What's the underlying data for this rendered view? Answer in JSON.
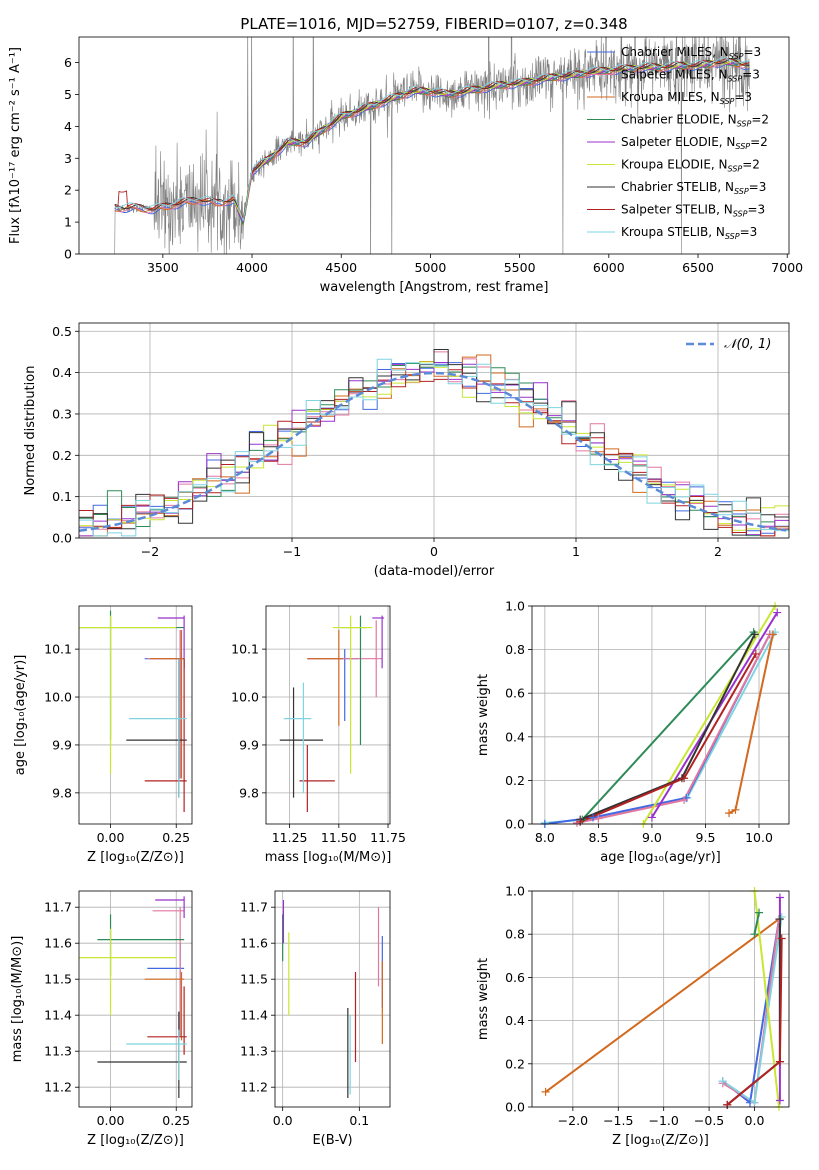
{
  "figure": {
    "title": "PLATE=1016, MJD=52759, FIBERID=0107, z=0.348"
  },
  "colors": {
    "Chabrier MILES": "#4169e1",
    "Salpeter MILES": "#e377a0",
    "Kroupa MILES": "#d2691e",
    "Chabrier ELODIE": "#2e8b57",
    "Salpeter ELODIE": "#9932cc",
    "Kroupa ELODIE": "#c8e632",
    "Chabrier STELIB": "#333333",
    "Salpeter STELIB": "#b22222",
    "Kroupa STELIB": "#7fd4e0",
    "gauss": "#5b8bd6",
    "data": "#808080",
    "grid": "#b0b0b0"
  },
  "chart_data": [
    {
      "id": "spectrum",
      "type": "line",
      "xlabel": "wavelength [Angstrom, rest frame]",
      "ylabel": "Flux [fλ10⁻¹⁷ erg cm⁻² s⁻¹ A⁻¹]",
      "xlim": [
        3030,
        7010
      ],
      "ylim": [
        0,
        6.8
      ],
      "xticks": [
        "3500",
        "4000",
        "4500",
        "5000",
        "5500",
        "6000",
        "6500",
        "7000"
      ],
      "yticks": [
        "0",
        "1",
        "2",
        "3",
        "4",
        "5",
        "6"
      ],
      "xtick_values": [
        3500,
        4000,
        4500,
        5000,
        5500,
        6000,
        6500,
        7000
      ],
      "ytick_values": [
        0,
        1,
        2,
        3,
        4,
        5,
        6
      ],
      "legend_position": "top-right",
      "legend": [
        {
          "label": "Chabrier MILES, N",
          "sub": "SSP",
          "tail": "=3",
          "key": "Chabrier MILES"
        },
        {
          "label": "Salpeter MILES, N",
          "sub": "SSP",
          "tail": "=3",
          "key": "Salpeter MILES"
        },
        {
          "label": "Kroupa MILES, N",
          "sub": "SSP",
          "tail": "=3",
          "key": "Kroupa MILES"
        },
        {
          "label": "Chabrier ELODIE, N",
          "sub": "SSP",
          "tail": "=2",
          "key": "Chabrier ELODIE"
        },
        {
          "label": "Salpeter ELODIE, N",
          "sub": "SSP",
          "tail": "=2",
          "key": "Salpeter ELODIE"
        },
        {
          "label": "Kroupa ELODIE, N",
          "sub": "SSP",
          "tail": "=2",
          "key": "Kroupa ELODIE"
        },
        {
          "label": "Chabrier STELIB, N",
          "sub": "SSP",
          "tail": "=3",
          "key": "Chabrier STELIB"
        },
        {
          "label": "Salpeter STELIB, N",
          "sub": "SSP",
          "tail": "=3",
          "key": "Salpeter STELIB"
        },
        {
          "label": "Kroupa STELIB, N",
          "sub": "SSP",
          "tail": "=3",
          "key": "Kroupa STELIB"
        }
      ],
      "continuum": [
        [
          3230,
          1.45
        ],
        [
          3350,
          1.45
        ],
        [
          3450,
          1.4
        ],
        [
          3600,
          1.6
        ],
        [
          3700,
          1.7
        ],
        [
          3800,
          1.6
        ],
        [
          3900,
          1.7
        ],
        [
          3950,
          1.0
        ],
        [
          4000,
          2.6
        ],
        [
          4100,
          3.0
        ],
        [
          4200,
          3.5
        ],
        [
          4300,
          3.5
        ],
        [
          4400,
          3.9
        ],
        [
          4500,
          4.3
        ],
        [
          4600,
          4.5
        ],
        [
          4700,
          4.7
        ],
        [
          4800,
          4.9
        ],
        [
          4900,
          5.1
        ],
        [
          5000,
          5.1
        ],
        [
          5100,
          5.0
        ],
        [
          5200,
          5.1
        ],
        [
          5300,
          5.2
        ],
        [
          5400,
          5.3
        ],
        [
          5500,
          5.35
        ],
        [
          5600,
          5.45
        ],
        [
          5700,
          5.55
        ],
        [
          5800,
          5.6
        ],
        [
          5900,
          5.7
        ],
        [
          6000,
          5.75
        ],
        [
          6100,
          5.8
        ],
        [
          6200,
          5.85
        ],
        [
          6300,
          5.85
        ],
        [
          6400,
          5.9
        ],
        [
          6500,
          5.9
        ],
        [
          6600,
          6.0
        ],
        [
          6700,
          6.0
        ],
        [
          6790,
          5.9
        ]
      ],
      "model_range": [
        3230,
        6790
      ],
      "data_range": [
        3230,
        6790
      ]
    },
    {
      "id": "residuals",
      "type": "histogram",
      "xlabel": "(data-model)/error",
      "ylabel": "Normed distribution",
      "xlim": [
        -2.5,
        2.5
      ],
      "ylim": [
        0,
        0.52
      ],
      "xticks": [
        "−2",
        "−1",
        "0",
        "1",
        "2"
      ],
      "yticks": [
        "0.0",
        "0.1",
        "0.2",
        "0.3",
        "0.4",
        "0.5"
      ],
      "xtick_values": [
        -2,
        -1,
        0,
        1,
        2
      ],
      "ytick_values": [
        0,
        0.1,
        0.2,
        0.3,
        0.4,
        0.5
      ],
      "bin_width": 0.1,
      "legend": [
        {
          "label": "𝒩(0, 1)",
          "key": "gauss"
        }
      ],
      "legend_position": "top-right"
    },
    {
      "id": "age_vs_Z",
      "type": "errorbar",
      "xlabel": "Z [log₁₀(Z/Z⊙)]",
      "ylabel": "age  [log₁₀(age/yr)]",
      "xlim": [
        -0.12,
        0.31
      ],
      "ylim": [
        9.735,
        10.19
      ],
      "xticks": [
        "0.00",
        "0.25"
      ],
      "yticks": [
        "9.8",
        "9.9",
        "10.0",
        "10.1"
      ],
      "xtick_values": [
        0.0,
        0.25
      ],
      "ytick_values": [
        9.8,
        9.9,
        10.0,
        10.1
      ],
      "points": [
        {
          "key": "Chabrier MILES",
          "x": 0.265,
          "y": 10.08,
          "xl": 0.13,
          "xh": 0.28,
          "yl": 9.83,
          "yh": 10.14
        },
        {
          "key": "Salpeter MILES",
          "x": 0.265,
          "y": 10.08,
          "xl": 0.14,
          "xh": 0.28,
          "yl": 9.83,
          "yh": 10.14
        },
        {
          "key": "Kroupa MILES",
          "x": 0.27,
          "y": 10.08,
          "xl": 0.15,
          "xh": 0.28,
          "yl": 9.83,
          "yh": 10.14
        },
        {
          "key": "Chabrier ELODIE",
          "x": 0.0,
          "y": 10.145,
          "xl": -0.12,
          "xh": 0.28,
          "yl": 9.91,
          "yh": 10.18
        },
        {
          "key": "Salpeter ELODIE",
          "x": 0.28,
          "y": 10.165,
          "xl": 0.18,
          "xh": 0.28,
          "yl": 10.06,
          "yh": 10.17
        },
        {
          "key": "Kroupa ELODIE",
          "x": 0.0,
          "y": 10.145,
          "xl": -0.12,
          "xh": 0.25,
          "yl": 9.84,
          "yh": 10.17
        },
        {
          "key": "Chabrier STELIB",
          "x": 0.26,
          "y": 9.91,
          "xl": 0.06,
          "xh": 0.29,
          "yl": 9.79,
          "yh": 10.08
        },
        {
          "key": "Salpeter STELIB",
          "x": 0.28,
          "y": 9.825,
          "xl": 0.13,
          "xh": 0.29,
          "yl": 9.76,
          "yh": 10.08
        },
        {
          "key": "Kroupa STELIB",
          "x": 0.26,
          "y": 9.955,
          "xl": 0.07,
          "xh": 0.29,
          "yl": 9.79,
          "yh": 10.08
        }
      ]
    },
    {
      "id": "age_vs_mass",
      "type": "errorbar",
      "xlabel": "mass [log₁₀(M/M⊙)]",
      "ylabel": "",
      "xlim": [
        11.13,
        11.76
      ],
      "ylim": [
        9.735,
        10.19
      ],
      "xticks": [
        "11.25",
        "11.50",
        "11.75"
      ],
      "yticks": [
        "9.8",
        "9.9",
        "10.0",
        "10.1"
      ],
      "xtick_values": [
        11.25,
        11.5,
        11.75
      ],
      "ytick_values": [
        9.8,
        9.9,
        10.0,
        10.1
      ],
      "points": [
        {
          "key": "Chabrier MILES",
          "x": 11.53,
          "y": 10.08,
          "xl": 11.34,
          "xh": 11.6,
          "yl": 9.95,
          "yh": 10.1
        },
        {
          "key": "Salpeter MILES",
          "x": 11.69,
          "y": 10.08,
          "xl": 11.34,
          "xh": 11.72,
          "yl": 10.0,
          "yh": 10.16
        },
        {
          "key": "Kroupa MILES",
          "x": 11.5,
          "y": 10.08,
          "xl": 11.34,
          "xh": 11.52,
          "yl": 9.94,
          "yh": 10.14
        },
        {
          "key": "Chabrier ELODIE",
          "x": 11.61,
          "y": 10.145,
          "xl": 11.51,
          "xh": 11.64,
          "yl": 9.9,
          "yh": 10.17
        },
        {
          "key": "Salpeter ELODIE",
          "x": 11.72,
          "y": 10.165,
          "xl": 11.67,
          "xh": 11.73,
          "yl": 10.06,
          "yh": 10.17
        },
        {
          "key": "Kroupa ELODIE",
          "x": 11.56,
          "y": 10.145,
          "xl": 11.47,
          "xh": 11.67,
          "yl": 9.84,
          "yh": 10.17
        },
        {
          "key": "Chabrier STELIB",
          "x": 11.27,
          "y": 9.91,
          "xl": 11.2,
          "xh": 11.42,
          "yl": 9.79,
          "yh": 10.02
        },
        {
          "key": "Salpeter STELIB",
          "x": 11.34,
          "y": 9.825,
          "xl": 11.3,
          "xh": 11.48,
          "yl": 9.76,
          "yh": 9.9
        },
        {
          "key": "Kroupa STELIB",
          "x": 11.32,
          "y": 9.955,
          "xl": 11.22,
          "xh": 11.36,
          "yl": 9.8,
          "yh": 10.03
        }
      ]
    },
    {
      "id": "weight_vs_age",
      "type": "line",
      "xlabel": "age  [log₁₀(age/yr)]",
      "ylabel": "mass weight",
      "xlim": [
        7.88,
        10.28
      ],
      "ylim": [
        0,
        1.0
      ],
      "xticks": [
        "8.0",
        "8.5",
        "9.0",
        "9.5",
        "10.0"
      ],
      "yticks": [
        "0.0",
        "0.2",
        "0.4",
        "0.6",
        "0.8",
        "1.0"
      ],
      "xtick_values": [
        8.0,
        8.5,
        9.0,
        9.5,
        10.0
      ],
      "ytick_values": [
        0,
        0.2,
        0.4,
        0.6,
        0.8,
        1.0
      ],
      "series": [
        {
          "key": "Kroupa STELIB",
          "x": [
            8.0,
            8.5,
            9.33,
            10.15
          ],
          "y": [
            0.005,
            0.025,
            0.12,
            0.88
          ]
        },
        {
          "key": "Chabrier MILES",
          "x": [
            8.0,
            8.45,
            9.32,
            10.1
          ],
          "y": [
            0.0,
            0.03,
            0.12,
            0.87
          ]
        },
        {
          "key": "Salpeter MILES",
          "x": [
            8.3,
            8.5,
            9.3,
            10.1
          ],
          "y": [
            0.005,
            0.025,
            0.11,
            0.87
          ]
        },
        {
          "key": "Chabrier ELODIE",
          "x": [
            8.35,
            9.95
          ],
          "y": [
            0.02,
            0.88
          ]
        },
        {
          "key": "Kroupa ELODIE",
          "x": [
            8.92,
            10.15
          ],
          "y": [
            0.0,
            1.0
          ]
        },
        {
          "key": "Salpeter ELODIE",
          "x": [
            9.0,
            10.17
          ],
          "y": [
            0.03,
            0.97
          ]
        },
        {
          "key": "Chabrier STELIB",
          "x": [
            8.33,
            9.28,
            9.96
          ],
          "y": [
            0.02,
            0.21,
            0.87
          ]
        },
        {
          "key": "Salpeter STELIB",
          "x": [
            8.33,
            9.3,
            9.97
          ],
          "y": [
            0.01,
            0.21,
            0.78
          ]
        },
        {
          "key": "Kroupa MILES",
          "x": [
            9.72,
            9.78,
            10.13
          ],
          "y": [
            0.05,
            0.065,
            0.87
          ]
        }
      ]
    },
    {
      "id": "mass_vs_Z",
      "type": "errorbar",
      "xlabel": "Z [log₁₀(Z/Z⊙)]",
      "ylabel": "mass [log₁₀(M/M⊙)]",
      "xlim": [
        -0.12,
        0.31
      ],
      "ylim": [
        11.145,
        11.745
      ],
      "xticks": [
        "0.00",
        "0.25"
      ],
      "yticks": [
        "11.2",
        "11.3",
        "11.4",
        "11.5",
        "11.6",
        "11.7"
      ],
      "xtick_values": [
        0.0,
        0.25
      ],
      "ytick_values": [
        11.2,
        11.3,
        11.4,
        11.5,
        11.6,
        11.7
      ],
      "points": [
        {
          "key": "Chabrier MILES",
          "x": 0.265,
          "y": 11.53,
          "xl": 0.14,
          "xh": 0.28,
          "yl": 11.34,
          "yh": 11.6
        },
        {
          "key": "Salpeter MILES",
          "x": 0.265,
          "y": 11.69,
          "xl": 0.16,
          "xh": 0.28,
          "yl": 11.34,
          "yh": 11.7
        },
        {
          "key": "Kroupa MILES",
          "x": 0.27,
          "y": 11.5,
          "xl": 0.13,
          "xh": 0.28,
          "yl": 11.33,
          "yh": 11.52
        },
        {
          "key": "Chabrier ELODIE",
          "x": 0.0,
          "y": 11.61,
          "xl": -0.05,
          "xh": 0.28,
          "yl": 11.51,
          "yh": 11.68
        },
        {
          "key": "Salpeter ELODIE",
          "x": 0.28,
          "y": 11.72,
          "xl": 0.17,
          "xh": 0.28,
          "yl": 11.67,
          "yh": 11.73
        },
        {
          "key": "Kroupa ELODIE",
          "x": 0.0,
          "y": 11.56,
          "xl": -0.12,
          "xh": 0.25,
          "yl": 11.4,
          "yh": 11.64
        },
        {
          "key": "Chabrier STELIB",
          "x": 0.26,
          "y": 11.27,
          "xl": -0.05,
          "xh": 0.29,
          "yl": 11.17,
          "yh": 11.41
        },
        {
          "key": "Salpeter STELIB",
          "x": 0.28,
          "y": 11.34,
          "xl": 0.14,
          "xh": 0.29,
          "yl": 11.29,
          "yh": 11.48
        },
        {
          "key": "Kroupa STELIB",
          "x": 0.26,
          "y": 11.32,
          "xl": 0.06,
          "xh": 0.29,
          "yl": 11.22,
          "yh": 11.36
        }
      ]
    },
    {
      "id": "mass_vs_EBV",
      "type": "errorbar",
      "xlabel": "E(B-V)",
      "ylabel": "",
      "xlim": [
        -0.01,
        0.14
      ],
      "ylim": [
        11.145,
        11.745
      ],
      "xticks": [
        "0.0",
        "0.1"
      ],
      "yticks": [
        "11.2",
        "11.3",
        "11.4",
        "11.5",
        "11.6",
        "11.7"
      ],
      "xtick_values": [
        0.0,
        0.1
      ],
      "ytick_values": [
        11.2,
        11.3,
        11.4,
        11.5,
        11.6,
        11.7
      ],
      "points": [
        {
          "key": "Chabrier MILES",
          "x": 0.13,
          "y": 11.53,
          "yl": 11.42,
          "yh": 11.62
        },
        {
          "key": "Salpeter MILES",
          "x": 0.125,
          "y": 11.6,
          "yl": 11.48,
          "yh": 11.7
        },
        {
          "key": "Kroupa MILES",
          "x": 0.13,
          "y": 11.5,
          "yl": 11.32,
          "yh": 11.55
        },
        {
          "key": "Chabrier ELODIE",
          "x": 0.0,
          "y": 11.61,
          "yl": 11.55,
          "yh": 11.68
        },
        {
          "key": "Salpeter ELODIE",
          "x": 0.001,
          "y": 11.68,
          "yl": 11.6,
          "yh": 11.72
        },
        {
          "key": "Kroupa ELODIE",
          "x": 0.008,
          "y": 11.56,
          "yl": 11.4,
          "yh": 11.63
        },
        {
          "key": "Chabrier STELIB",
          "x": 0.085,
          "y": 11.27,
          "yl": 11.17,
          "yh": 11.42
        },
        {
          "key": "Salpeter STELIB",
          "x": 0.095,
          "y": 11.34,
          "yl": 11.27,
          "yh": 11.52
        },
        {
          "key": "Kroupa STELIB",
          "x": 0.088,
          "y": 11.32,
          "yl": 11.18,
          "yh": 11.4
        }
      ]
    },
    {
      "id": "weight_vs_Z",
      "type": "line",
      "xlabel": "Z [log₁₀(Z/Z⊙)]",
      "ylabel": "mass weight",
      "xlim": [
        -2.45,
        0.38
      ],
      "ylim": [
        0,
        1.0
      ],
      "xticks": [
        "−2.0",
        "−1.5",
        "−1.0",
        "−0.5",
        "0.0"
      ],
      "yticks": [
        "0.0",
        "0.2",
        "0.4",
        "0.6",
        "0.8",
        "1.0"
      ],
      "xtick_values": [
        -2.0,
        -1.5,
        -1.0,
        -0.5,
        0.0
      ],
      "ytick_values": [
        0,
        0.2,
        0.4,
        0.6,
        0.8,
        1.0
      ],
      "series": [
        {
          "key": "Kroupa MILES",
          "x": [
            -2.3,
            0.27
          ],
          "y": [
            0.07,
            0.87
          ]
        },
        {
          "key": "Chabrier MILES",
          "x": [
            -0.35,
            -0.05,
            0.27
          ],
          "y": [
            0.12,
            0.02,
            0.87
          ]
        },
        {
          "key": "Salpeter MILES",
          "x": [
            -0.35,
            0.0,
            0.27
          ],
          "y": [
            0.11,
            0.02,
            0.87
          ]
        },
        {
          "key": "Kroupa STELIB",
          "x": [
            -0.35,
            0.0,
            0.3
          ],
          "y": [
            0.12,
            0.02,
            0.88
          ]
        },
        {
          "key": "Kroupa ELODIE",
          "x": [
            0.0,
            0.27
          ],
          "y": [
            1.0,
            0.0
          ]
        },
        {
          "key": "Chabrier ELODIE",
          "x": [
            0.0,
            0.05
          ],
          "y": [
            0.8,
            0.9
          ]
        },
        {
          "key": "Salpeter ELODIE",
          "x": [
            0.28,
            0.28
          ],
          "y": [
            0.03,
            0.97
          ]
        },
        {
          "key": "Chabrier STELIB",
          "x": [
            -0.3,
            0.28,
            0.28
          ],
          "y": [
            0.01,
            0.21,
            0.87
          ]
        },
        {
          "key": "Salpeter STELIB",
          "x": [
            -0.3,
            0.28,
            0.3
          ],
          "y": [
            0.01,
            0.21,
            0.78
          ]
        }
      ]
    }
  ]
}
